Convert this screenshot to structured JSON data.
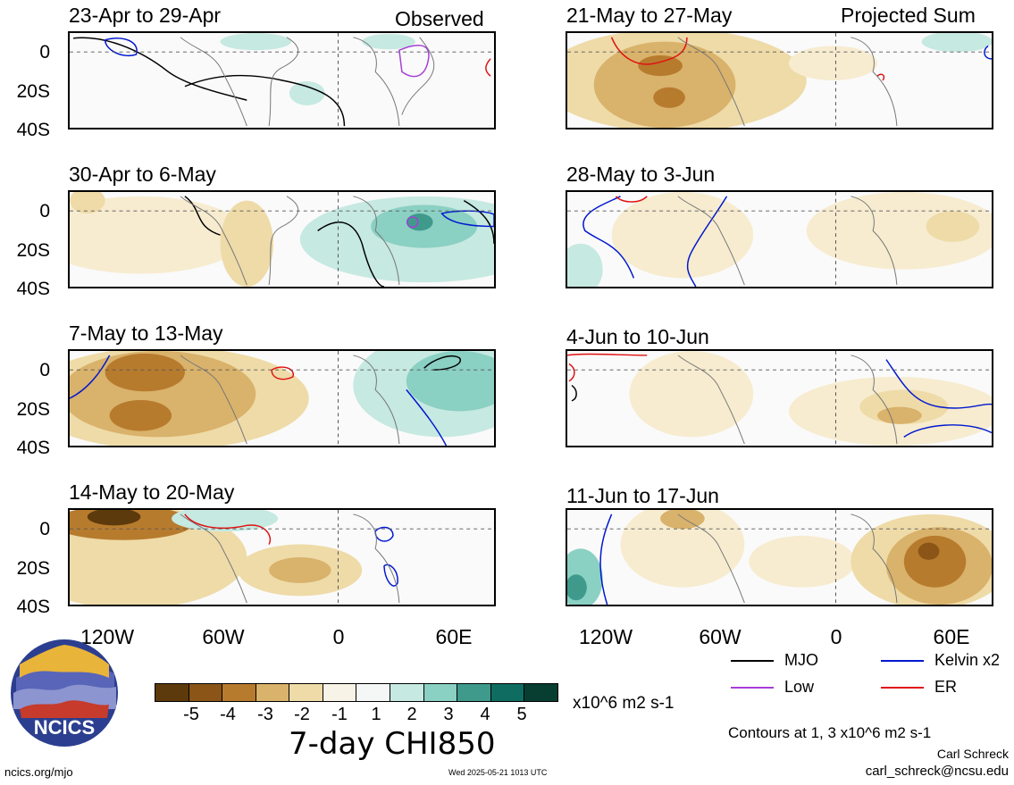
{
  "header": {
    "observed_label": "Observed",
    "projected_label": "Projected Sum"
  },
  "panels": {
    "left": [
      {
        "title": "23-Apr to 29-Apr"
      },
      {
        "title": "30-Apr to 6-May"
      },
      {
        "title": "7-May to 13-May"
      },
      {
        "title": "14-May to 20-May"
      }
    ],
    "right": [
      {
        "title": "21-May to 27-May"
      },
      {
        "title": "28-May to 3-Jun"
      },
      {
        "title": "4-Jun to 10-Jun"
      },
      {
        "title": "11-Jun to 17-Jun"
      }
    ]
  },
  "axes": {
    "y_ticks": [
      "0",
      "20S",
      "40S"
    ],
    "x_ticks": [
      "120W",
      "60W",
      "0",
      "60E"
    ]
  },
  "colorbar": {
    "labels": [
      "-5",
      "-4",
      "-3",
      "-2",
      "-1",
      "1",
      "2",
      "3",
      "4",
      "5"
    ],
    "colors": [
      "#5c3a0c",
      "#8a5517",
      "#b77b2e",
      "#d9b26b",
      "#eedba8",
      "#f7f3e6",
      "#f4f7f6",
      "#c6e9e1",
      "#8ad0c3",
      "#3f9a8c",
      "#0e6d60",
      "#083d31"
    ],
    "units": "x10^6 m2 s-1",
    "title": "7-day CHI850"
  },
  "legend": {
    "items": [
      {
        "label": "MJO",
        "color": "#000000"
      },
      {
        "label": "Kelvin x2",
        "color": "#0018d0"
      },
      {
        "label": "Low",
        "color": "#a63fd8"
      },
      {
        "label": "ER",
        "color": "#e01010"
      }
    ],
    "contours_note": "Contours at 1, 3 x10^6 m2 s-1"
  },
  "credits": {
    "author": "Carl Schreck",
    "email": "carl_schreck@ncsu.edu",
    "url": "ncics.org/mjo",
    "timestamp": "Wed 2025-05-21 1013 UTC",
    "logo_text": "NCICS"
  }
}
